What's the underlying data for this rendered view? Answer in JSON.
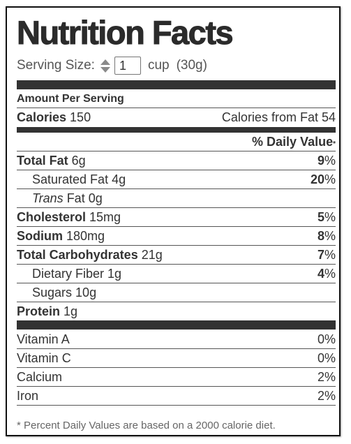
{
  "title": "Nutrition Facts",
  "serving": {
    "label": "Serving Size:",
    "quantity": "1",
    "unit": "cup",
    "weight": "(30g)"
  },
  "amount_per_serving": "Amount Per Serving",
  "calories": {
    "label": "Calories",
    "value": "150",
    "from_fat_label": "Calories from Fat",
    "from_fat_value": "54"
  },
  "daily_value_header": "% Daily Value",
  "daily_value_mark": "*",
  "nutrients": {
    "total_fat": {
      "label": "Total Fat",
      "amount": "6g",
      "dv": "9",
      "pct": "%"
    },
    "saturated_fat": {
      "label": "Saturated Fat",
      "amount": "4g",
      "dv": "20",
      "pct": "%"
    },
    "trans_fat": {
      "label_italic": "Trans",
      "label": "Fat",
      "amount": "0g"
    },
    "cholesterol": {
      "label": "Cholesterol",
      "amount": "15mg",
      "dv": "5",
      "pct": "%"
    },
    "sodium": {
      "label": "Sodium",
      "amount": "180mg",
      "dv": "8",
      "pct": "%"
    },
    "total_carbs": {
      "label": "Total Carbohydrates",
      "amount": "21g",
      "dv": "7",
      "pct": "%"
    },
    "dietary_fiber": {
      "label": "Dietary Fiber",
      "amount": "1g",
      "dv": "4",
      "pct": "%"
    },
    "sugars": {
      "label": "Sugars",
      "amount": "10g"
    },
    "protein": {
      "label": "Protein",
      "amount": "1g"
    }
  },
  "vitamins": [
    {
      "label": "Vitamin A",
      "value": "0%"
    },
    {
      "label": "Vitamin C",
      "value": "0%"
    },
    {
      "label": "Calcium",
      "value": "2%"
    },
    {
      "label": "Iron",
      "value": "2%"
    }
  ],
  "footnote": "* Percent Daily Values are based on a 2000 calorie diet."
}
